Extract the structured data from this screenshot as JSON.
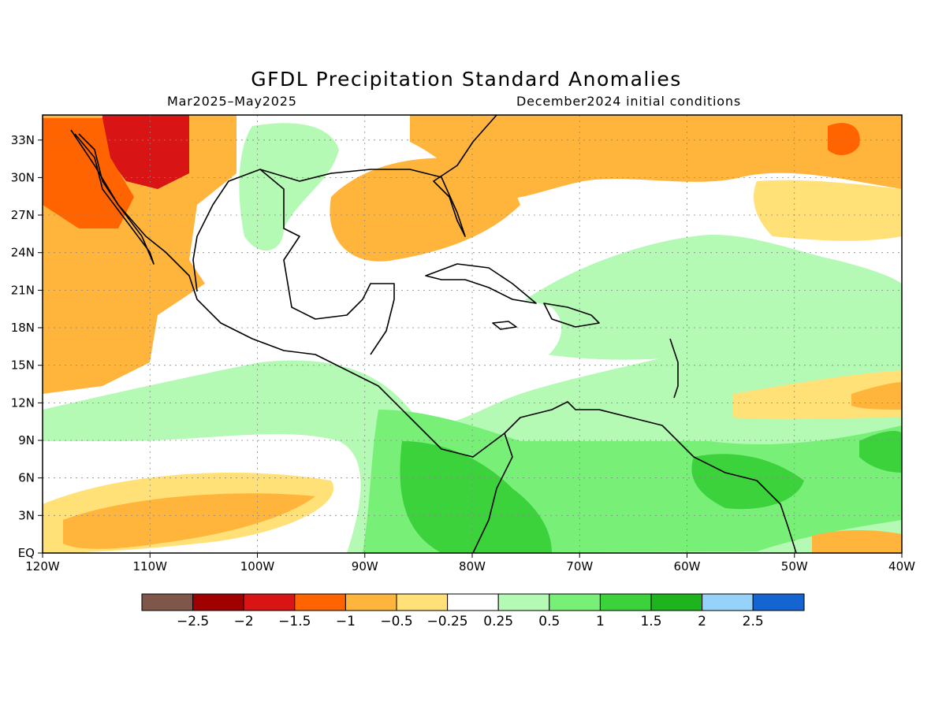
{
  "title": "GFDL Precipitation Standard Anomalies",
  "subtitle_left": "Mar2025–May2025",
  "subtitle_right": "December2024 initial conditions",
  "map": {
    "lon_range": [
      -120,
      -40
    ],
    "lat_range": [
      0,
      35
    ],
    "lon_ticks": [
      "120W",
      "110W",
      "100W",
      "90W",
      "80W",
      "70W",
      "60W",
      "50W",
      "40W"
    ],
    "lat_ticks": [
      "EQ",
      "3N",
      "6N",
      "9N",
      "12N",
      "15N",
      "18N",
      "21N",
      "24N",
      "27N",
      "30N",
      "33N"
    ]
  },
  "legend": {
    "colors": [
      "#7f564a",
      "#a00000",
      "#d81414",
      "#ff6400",
      "#ffb43c",
      "#ffe178",
      "#ffffff",
      "#b4fab4",
      "#78f078",
      "#3cd23c",
      "#1eb41e",
      "#96d2fa",
      "#1464d2"
    ],
    "labels": [
      "−2.5",
      "−2",
      "−1.5",
      "−1",
      "−0.5",
      "−0.25",
      "0.25",
      "0.5",
      "1",
      "1.5",
      "2",
      "2.5"
    ]
  }
}
